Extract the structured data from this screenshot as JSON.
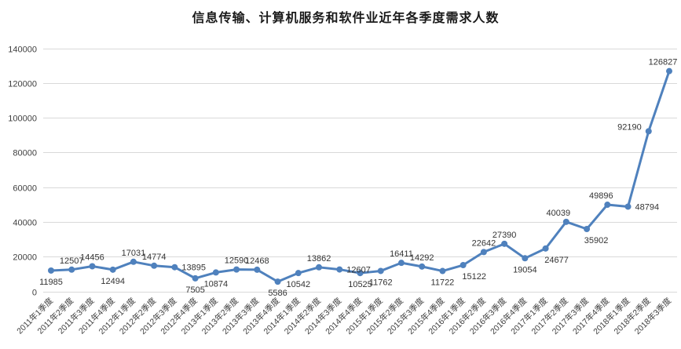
{
  "chart_data": {
    "type": "line",
    "title": "信息传输、计算机服务和软件业近年各季度需求人数",
    "xlabel": "",
    "ylabel": "",
    "ylim": [
      0,
      140000
    ],
    "ytick_step": 20000,
    "grid": true,
    "legend_position": "none",
    "line_color": "#4F81BD",
    "grid_color": "#D9D9D9",
    "marker": "circle",
    "data_labels_visible": true,
    "categories": [
      "2011年1季度",
      "2011年2季度",
      "2011年3季度",
      "2011年4季度",
      "2012年1季度",
      "2012年2季度",
      "2012年3季度",
      "2012年4季度",
      "2013年1季度",
      "2013年2季度",
      "2013年3季度",
      "2013年4季度",
      "2014年1季度",
      "2014年2季度",
      "2014年3季度",
      "2014年4季度",
      "2015年1季度",
      "2015年2季度",
      "2015年3季度",
      "2015年4季度",
      "2016年1季度",
      "2016年2季度",
      "2016年3季度",
      "2016年4季度",
      "2017年1季度",
      "2017年2季度",
      "2017年3季度",
      "2017年4季度",
      "2018年1季度",
      "2018年2季度",
      "2018年3季度"
    ],
    "series": [
      {
        "name": "需求人数",
        "values": [
          11985,
          12507,
          14456,
          12494,
          17031,
          14774,
          13895,
          7505,
          10874,
          12590,
          12468,
          5586,
          10542,
          13862,
          12607,
          10525,
          11762,
          16411,
          14292,
          11722,
          15122,
          22642,
          27390,
          19054,
          24677,
          40039,
          35902,
          49896,
          48794,
          92190,
          126827
        ]
      }
    ],
    "label_positions": [
      "below",
      "above",
      "above",
      "below",
      "above",
      "above",
      "right",
      "below",
      "below",
      "above",
      "above",
      "below",
      "below",
      "above",
      "right",
      "below",
      "below",
      "above",
      "above",
      "below",
      "below",
      "above",
      "above",
      "below",
      "below",
      "above",
      "below",
      "above",
      "right",
      "left",
      "above"
    ],
    "label_dx": {
      "20": 14,
      "24": 14,
      "25": -10,
      "26": 12,
      "27": -8,
      "30": -8
    }
  }
}
